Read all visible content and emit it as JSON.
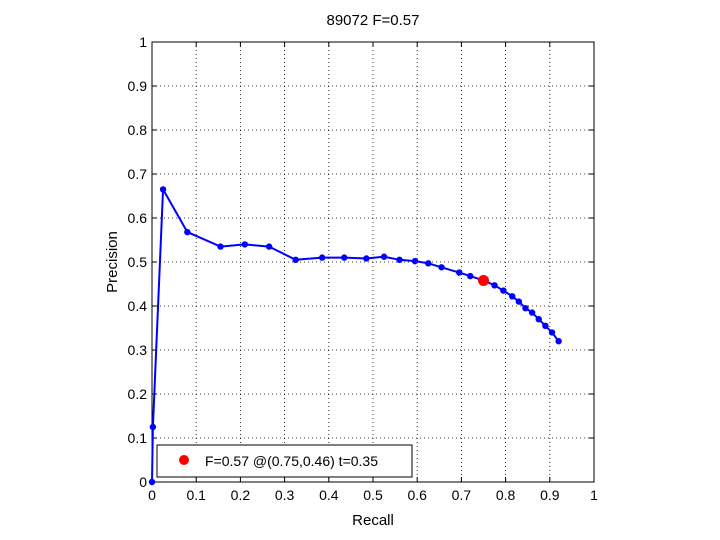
{
  "chart_data": {
    "type": "line",
    "title": "89072 F=0.57",
    "xlabel": "Recall",
    "ylabel": "Precision",
    "xlim": [
      0,
      1
    ],
    "ylim": [
      0,
      1
    ],
    "xticks": [
      "0",
      "0.1",
      "0.2",
      "0.3",
      "0.4",
      "0.5",
      "0.6",
      "0.7",
      "0.8",
      "0.9",
      "1"
    ],
    "yticks": [
      "0",
      "0.1",
      "0.2",
      "0.3",
      "0.4",
      "0.5",
      "0.6",
      "0.7",
      "0.8",
      "0.9",
      "1"
    ],
    "grid": true,
    "legend_position": "bottom-left",
    "legend_label": "F=0.57 @(0.75,0.46) t=0.35",
    "series_color": "#0000ff",
    "highlight_color": "#ff0000",
    "series": [
      {
        "x": [
          0,
          0.002,
          0.025,
          0.08,
          0.155,
          0.21,
          0.265,
          0.325,
          0.385,
          0.435,
          0.485,
          0.525,
          0.56,
          0.595,
          0.625,
          0.655,
          0.695,
          0.72,
          0.75,
          0.775,
          0.795,
          0.815,
          0.83,
          0.845,
          0.86,
          0.875,
          0.89,
          0.905,
          0.92
        ],
        "y": [
          0,
          0.125,
          0.665,
          0.568,
          0.535,
          0.54,
          0.535,
          0.505,
          0.51,
          0.51,
          0.508,
          0.512,
          0.505,
          0.502,
          0.497,
          0.488,
          0.476,
          0.468,
          0.458,
          0.447,
          0.435,
          0.422,
          0.41,
          0.395,
          0.385,
          0.37,
          0.355,
          0.34,
          0.32
        ]
      }
    ],
    "highlight": {
      "x": 0.75,
      "y": 0.458
    }
  }
}
